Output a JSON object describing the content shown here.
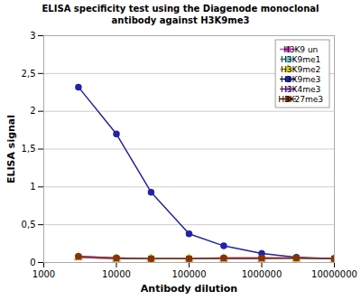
{
  "chart_data": {
    "type": "line",
    "title": "ELISA specificity test using the Diagenode monoclonal\nantibody against H3K9me3",
    "x_label": "Antibody dilution",
    "y_label": "ELISA signal",
    "x": [
      3000,
      10000,
      30000,
      100000,
      300000,
      1000000,
      3000000,
      10000000
    ],
    "series": [
      {
        "name": "H3K9 un",
        "color": "#cc44cc",
        "marker": "circle",
        "values": [
          0.08,
          0.06,
          0.05,
          0.05,
          0.06,
          0.06,
          0.06,
          0.05
        ]
      },
      {
        "name": "H3K9me1",
        "color": "#66ccdd",
        "marker": "square",
        "values": [
          0.07,
          0.05,
          0.05,
          0.05,
          0.05,
          0.05,
          0.05,
          0.05
        ]
      },
      {
        "name": "H3K9me2",
        "color": "#ddcc00",
        "marker": "triangle",
        "values": [
          0.07,
          0.05,
          0.05,
          0.05,
          0.05,
          0.05,
          0.05,
          0.05
        ]
      },
      {
        "name": "H3K9me3",
        "color": "#2222aa",
        "marker": "circle",
        "values": [
          2.32,
          1.7,
          0.93,
          0.38,
          0.22,
          0.12,
          0.07,
          0.05
        ]
      },
      {
        "name": "H3K4me3",
        "color": "#9933cc",
        "marker": "times",
        "values": [
          0.07,
          0.05,
          0.05,
          0.05,
          0.05,
          0.05,
          0.06,
          0.05
        ]
      },
      {
        "name": "H3K27me3",
        "color": "#883300",
        "marker": "circle",
        "values": [
          0.08,
          0.06,
          0.05,
          0.05,
          0.06,
          0.06,
          0.06,
          0.05
        ]
      }
    ],
    "log": "x",
    "xlim": [
      1000,
      10000000
    ],
    "xticks": [
      1000,
      10000,
      100000,
      1000000,
      10000000
    ],
    "ylim": [
      0,
      3.0
    ],
    "yticks": [
      0,
      {
        "value": 0.5,
        "label": "0,5"
      },
      1,
      {
        "value": 1.5,
        "label": "1,5"
      },
      2,
      {
        "value": 2.5,
        "label": "2,5"
      },
      3
    ],
    "grid": "y",
    "legend": "upper right"
  }
}
